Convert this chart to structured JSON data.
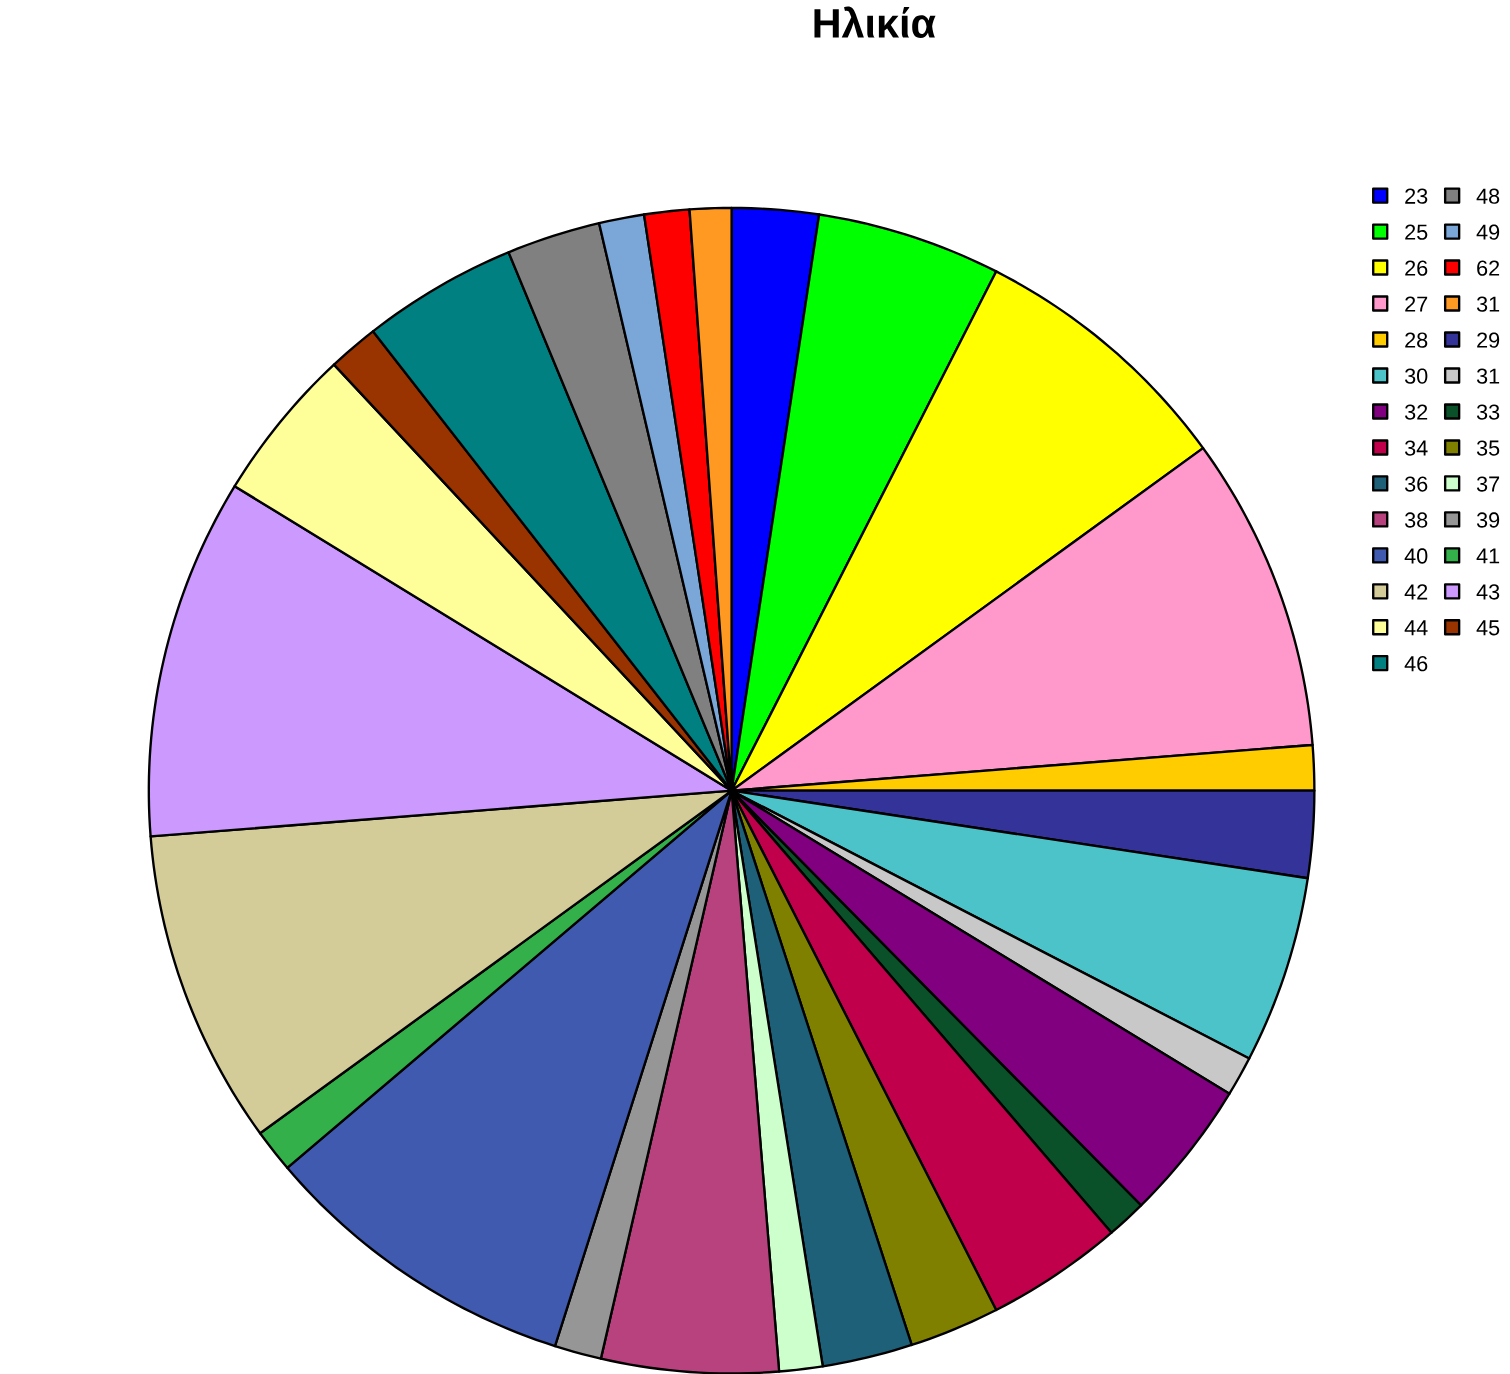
{
  "chart_data": {
    "type": "pie",
    "title": "Ηλικία",
    "categories": [
      "23",
      "25",
      "26",
      "27",
      "28",
      "29",
      "30",
      "31",
      "32",
      "33",
      "34",
      "35",
      "36",
      "37",
      "38",
      "39",
      "40",
      "41",
      "42",
      "43",
      "44",
      "45",
      "46",
      "48",
      "49",
      "62",
      "31"
    ],
    "values": [
      2.4,
      5.1,
      7.5,
      8.75,
      1.25,
      2.4,
      5.2,
      1.1,
      3.9,
      1.1,
      3.8,
      2.5,
      2.5,
      1.2,
      4.9,
      1.3,
      8.9,
      1.2,
      8.75,
      10,
      4.3,
      1.4,
      4.3,
      2.6,
      1.25,
      1.25,
      1.15
    ],
    "colors": [
      "#0000ff",
      "#00ff00",
      "#ffff00",
      "#ff99cc",
      "#ffcc00",
      "#333399",
      "#4bc3c8",
      "#c8c8c8",
      "#800080",
      "#0a5028",
      "#c0004a",
      "#808000",
      "#1e6078",
      "#ccffcc",
      "#b8427e",
      "#969696",
      "#3f5aae",
      "#33b04a",
      "#d4cc98",
      "#cc99ff",
      "#ffff99",
      "#993300",
      "#008080",
      "#808080",
      "#7aa7d8",
      "#ff0000",
      "#ff9922"
    ],
    "legend": "right"
  }
}
